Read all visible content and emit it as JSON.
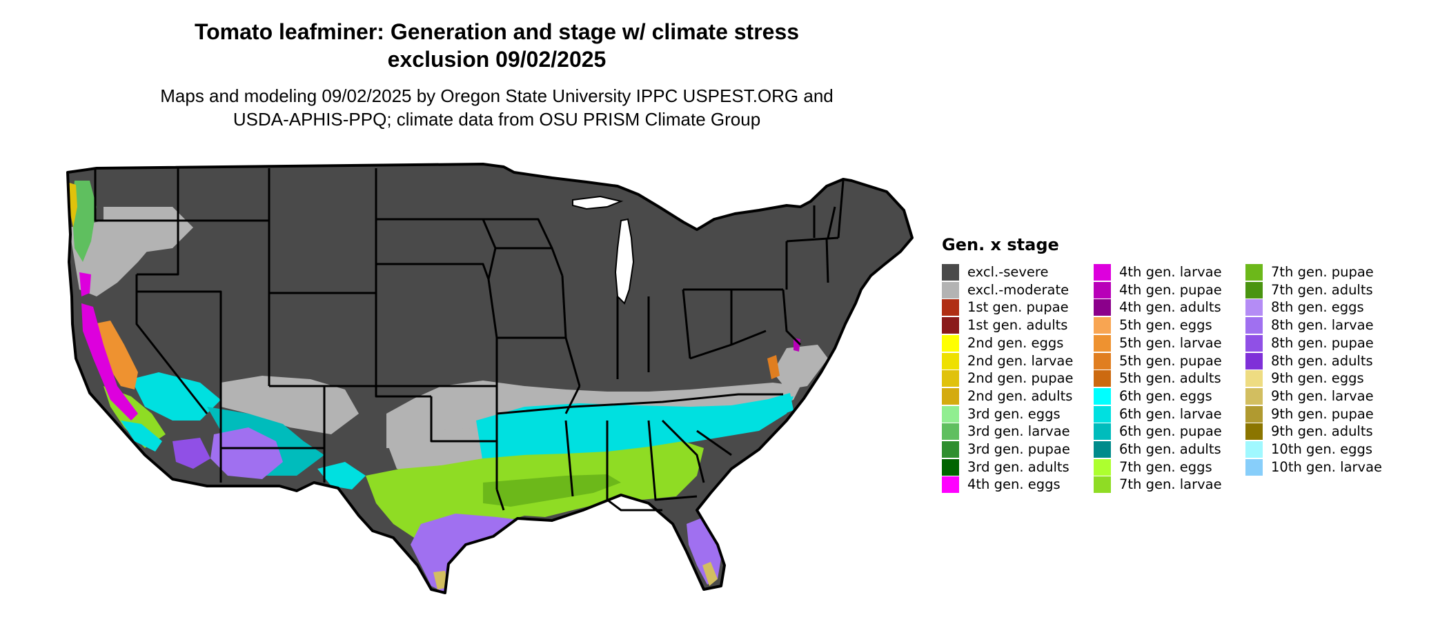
{
  "title_line1": "Tomato leafminer: Generation and stage w/ climate stress",
  "title_line2": "exclusion 09/02/2025",
  "subtitle_line1": "Maps and modeling 09/02/2025 by Oregon State University IPPC USPEST.ORG and",
  "subtitle_line2": "USDA-APHIS-PPQ; climate data from OSU PRISM Climate Group",
  "legend": {
    "title": "Gen. x stage",
    "items": [
      {
        "label": "excl.-severe",
        "color": "#4a4a4a"
      },
      {
        "label": "excl.-moderate",
        "color": "#b3b3b3"
      },
      {
        "label": "1st gen. pupae",
        "color": "#b02e14"
      },
      {
        "label": "1st gen. adults",
        "color": "#8b1a1a"
      },
      {
        "label": "2nd gen. eggs",
        "color": "#ffff00"
      },
      {
        "label": "2nd gen. larvae",
        "color": "#eee000"
      },
      {
        "label": "2nd gen. pupae",
        "color": "#e0c20c"
      },
      {
        "label": "2nd gen. adults",
        "color": "#d4ab10"
      },
      {
        "label": "3rd gen. eggs",
        "color": "#90ee90"
      },
      {
        "label": "3rd gen. larvae",
        "color": "#5fbf5f"
      },
      {
        "label": "3rd gen. pupae",
        "color": "#2f8f2f"
      },
      {
        "label": "3rd gen. adults",
        "color": "#006400"
      },
      {
        "label": "4th gen. eggs",
        "color": "#ff00ff"
      },
      {
        "label": "4th gen. larvae",
        "color": "#dd00dd"
      },
      {
        "label": "4th gen. pupae",
        "color": "#b800b8"
      },
      {
        "label": "4th gen. adults",
        "color": "#8b008b"
      },
      {
        "label": "5th gen. eggs",
        "color": "#f8a552"
      },
      {
        "label": "5th gen. larvae",
        "color": "#ee9230"
      },
      {
        "label": "5th gen. pupae",
        "color": "#e07e20"
      },
      {
        "label": "5th gen. adults",
        "color": "#cc6a10"
      },
      {
        "label": "6th gen. eggs",
        "color": "#00ffff"
      },
      {
        "label": "6th gen. larvae",
        "color": "#00e0e0"
      },
      {
        "label": "6th gen. pupae",
        "color": "#00bcbc"
      },
      {
        "label": "6th gen. adults",
        "color": "#008b8b"
      },
      {
        "label": "7th gen. eggs",
        "color": "#adff2f"
      },
      {
        "label": "7th gen. larvae",
        "color": "#8fdc24"
      },
      {
        "label": "7th gen. pupae",
        "color": "#6cb81a"
      },
      {
        "label": "7th gen. adults",
        "color": "#4a9410"
      },
      {
        "label": "8th gen. eggs",
        "color": "#b48cf5"
      },
      {
        "label": "8th gen. larvae",
        "color": "#a070f0"
      },
      {
        "label": "8th gen. pupae",
        "color": "#9050e6"
      },
      {
        "label": "8th gen. adults",
        "color": "#7f30d8"
      },
      {
        "label": "9th gen. eggs",
        "color": "#eedc82"
      },
      {
        "label": "9th gen. larvae",
        "color": "#d2be60"
      },
      {
        "label": "9th gen. pupae",
        "color": "#b09a30"
      },
      {
        "label": "9th gen. adults",
        "color": "#8b7500"
      },
      {
        "label": "10th gen. eggs",
        "color": "#a0f8ff"
      },
      {
        "label": "10th gen. larvae",
        "color": "#87cefa"
      }
    ]
  },
  "map": {
    "region": "contiguous United States",
    "border_color": "#000000",
    "water_color": "#ffffff"
  }
}
